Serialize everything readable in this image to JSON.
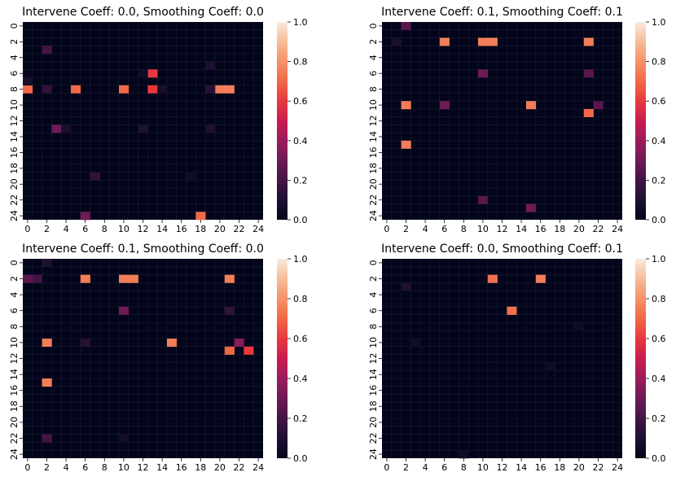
{
  "chart_data": [
    {
      "type": "heatmap",
      "title": "Intervene Coeff: 0.0, Smoothing Coeff: 0.0",
      "size": 25,
      "ticks": [
        0,
        2,
        4,
        6,
        8,
        10,
        12,
        14,
        16,
        18,
        20,
        22,
        24
      ],
      "colorbar": {
        "vmin": 0.0,
        "vmax": 1.0,
        "ticks": [
          "0.0",
          "0.2",
          "0.4",
          "0.6",
          "0.8",
          "1.0"
        ]
      },
      "cells": [
        [
          8,
          0,
          0.7
        ],
        [
          8,
          5,
          0.7
        ],
        [
          8,
          10,
          0.7
        ],
        [
          8,
          13,
          0.6
        ],
        [
          6,
          13,
          0.6
        ],
        [
          8,
          20,
          0.75
        ],
        [
          8,
          21,
          0.75
        ],
        [
          24,
          18,
          0.7
        ],
        [
          24,
          6,
          0.3
        ],
        [
          13,
          3,
          0.3
        ],
        [
          3,
          2,
          0.2
        ],
        [
          8,
          2,
          0.15
        ],
        [
          8,
          19,
          0.12
        ],
        [
          5,
          19,
          0.1
        ],
        [
          13,
          12,
          0.1
        ],
        [
          13,
          19,
          0.1
        ],
        [
          19,
          7,
          0.15
        ],
        [
          7,
          0,
          0.08
        ],
        [
          13,
          4,
          0.08
        ],
        [
          6,
          12,
          0.06
        ],
        [
          8,
          14,
          0.08
        ],
        [
          19,
          17,
          0.06
        ]
      ]
    },
    {
      "type": "heatmap",
      "title": "Intervene Coeff: 0.1, Smoothing Coeff: 0.1",
      "size": 25,
      "ticks": [
        0,
        2,
        4,
        6,
        8,
        10,
        12,
        14,
        16,
        18,
        20,
        22,
        24
      ],
      "colorbar": {
        "vmin": 0.0,
        "vmax": 1.0,
        "ticks": [
          "0.0",
          "0.2",
          "0.4",
          "0.6",
          "0.8",
          "1.0"
        ]
      },
      "cells": [
        [
          0,
          2,
          0.25
        ],
        [
          2,
          6,
          0.75
        ],
        [
          2,
          10,
          0.75
        ],
        [
          2,
          11,
          0.75
        ],
        [
          2,
          21,
          0.75
        ],
        [
          6,
          10,
          0.3
        ],
        [
          6,
          21,
          0.25
        ],
        [
          10,
          2,
          0.75
        ],
        [
          10,
          6,
          0.3
        ],
        [
          10,
          15,
          0.75
        ],
        [
          10,
          22,
          0.25
        ],
        [
          11,
          21,
          0.7
        ],
        [
          15,
          2,
          0.75
        ],
        [
          22,
          10,
          0.25
        ],
        [
          23,
          15,
          0.3
        ],
        [
          2,
          1,
          0.08
        ]
      ]
    },
    {
      "type": "heatmap",
      "title": "Intervene Coeff: 0.1, Smoothing Coeff: 0.0",
      "size": 25,
      "ticks": [
        0,
        2,
        4,
        6,
        8,
        10,
        12,
        14,
        16,
        18,
        20,
        22,
        24
      ],
      "colorbar": {
        "vmin": 0.0,
        "vmax": 1.0,
        "ticks": [
          "0.0",
          "0.2",
          "0.4",
          "0.6",
          "0.8",
          "1.0"
        ]
      },
      "cells": [
        [
          0,
          2,
          0.1
        ],
        [
          2,
          0,
          0.25
        ],
        [
          2,
          1,
          0.2
        ],
        [
          2,
          6,
          0.75
        ],
        [
          2,
          10,
          0.75
        ],
        [
          2,
          11,
          0.75
        ],
        [
          2,
          21,
          0.75
        ],
        [
          6,
          10,
          0.3
        ],
        [
          6,
          21,
          0.15
        ],
        [
          10,
          2,
          0.75
        ],
        [
          10,
          6,
          0.12
        ],
        [
          10,
          15,
          0.75
        ],
        [
          10,
          22,
          0.35
        ],
        [
          11,
          21,
          0.7
        ],
        [
          11,
          23,
          0.6
        ],
        [
          15,
          2,
          0.75
        ],
        [
          22,
          2,
          0.2
        ],
        [
          22,
          10,
          0.06
        ]
      ]
    },
    {
      "type": "heatmap",
      "title": "Intervene Coeff: 0.0, Smoothing Coeff: 0.1",
      "size": 25,
      "ticks": [
        0,
        2,
        4,
        6,
        8,
        10,
        12,
        14,
        16,
        18,
        20,
        22,
        24
      ],
      "colorbar": {
        "vmin": 0.0,
        "vmax": 1.0,
        "ticks": [
          "0.0",
          "0.2",
          "0.4",
          "0.6",
          "0.8",
          "1.0"
        ]
      },
      "cells": [
        [
          2,
          11,
          0.72
        ],
        [
          2,
          16,
          0.75
        ],
        [
          6,
          13,
          0.72
        ],
        [
          3,
          2,
          0.1
        ],
        [
          10,
          3,
          0.06
        ],
        [
          8,
          20,
          0.05
        ],
        [
          13,
          17,
          0.05
        ],
        [
          24,
          8,
          0.05
        ]
      ]
    }
  ]
}
